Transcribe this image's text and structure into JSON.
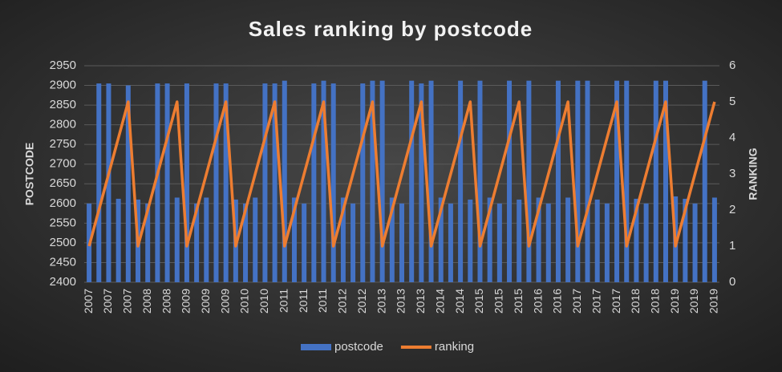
{
  "chart_data": {
    "type": "combo",
    "title": "Sales ranking by postcode",
    "y_label": "POSTCODE",
    "y2_label": "RANKING",
    "categories": [
      "2007",
      null,
      "2007",
      null,
      "2007",
      null,
      "2008",
      null,
      "2008",
      null,
      "2009",
      null,
      "2009",
      null,
      "2009",
      null,
      "2010",
      null,
      "2010",
      null,
      "2011",
      null,
      "2011",
      null,
      "2011",
      null,
      "2012",
      null,
      "2012",
      null,
      "2013",
      null,
      "2013",
      null,
      "2013",
      null,
      "2014",
      null,
      "2014",
      null,
      "2015",
      null,
      "2015",
      null,
      "2015",
      null,
      "2016",
      null,
      "2016",
      null,
      "2017",
      null,
      "2017",
      null,
      "2017",
      null,
      "2018",
      null,
      "2018",
      null,
      "2019",
      null,
      "2019",
      null,
      "2019"
    ],
    "series": [
      {
        "name": "postcode",
        "type": "bar",
        "color": "#4472c4",
        "values": [
          2600,
          2905,
          2905,
          2612,
          2900,
          2610,
          2600,
          2905,
          2905,
          2615,
          2905,
          2600,
          2615,
          2905,
          2905,
          2610,
          2600,
          2615,
          2905,
          2905,
          2912,
          2615,
          2600,
          2905,
          2912,
          2905,
          2615,
          2600,
          2905,
          2912,
          2912,
          2615,
          2600,
          2912,
          2905,
          2912,
          2615,
          2600,
          2912,
          2610,
          2912,
          2615,
          2600,
          2912,
          2610,
          2912,
          2615,
          2600,
          2912,
          2615,
          2912,
          2912,
          2610,
          2600,
          2912,
          2912,
          2612,
          2600,
          2912,
          2912,
          2618,
          2612,
          2600,
          2912,
          2615
        ]
      },
      {
        "name": "ranking",
        "type": "line",
        "axis": "y2",
        "color": "#ed7d31",
        "values": [
          1,
          2,
          3,
          4,
          5,
          1,
          2,
          3,
          4,
          5,
          1,
          2,
          3,
          4,
          5,
          1,
          2,
          3,
          4,
          5,
          1,
          2,
          3,
          4,
          5,
          1,
          2,
          3,
          4,
          5,
          1,
          2,
          3,
          4,
          5,
          1,
          2,
          3,
          4,
          5,
          1,
          2,
          3,
          4,
          5,
          1,
          2,
          3,
          4,
          5,
          1,
          2,
          3,
          4,
          5,
          1,
          2,
          3,
          4,
          5,
          1,
          2,
          3,
          4,
          5
        ]
      }
    ],
    "ylim": [
      2400,
      2950
    ],
    "yticks": [
      2400,
      2450,
      2500,
      2550,
      2600,
      2650,
      2700,
      2750,
      2800,
      2850,
      2900,
      2950
    ],
    "y2lim": [
      0,
      6
    ],
    "y2ticks": [
      0,
      1,
      2,
      3,
      4,
      5,
      6
    ],
    "grid": true,
    "legend": "bottom"
  }
}
